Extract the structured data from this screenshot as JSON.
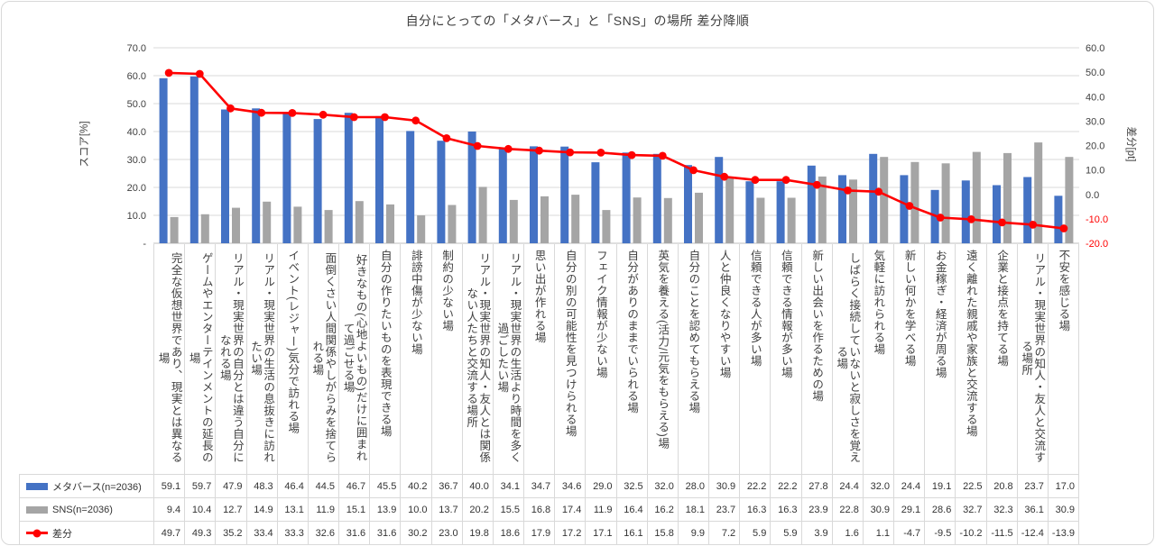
{
  "chart_data": {
    "type": "bar",
    "subtype": "combo-bar-line",
    "title": "自分にとっての「メタバース」と「SNS」の場所 差分降順",
    "grid": "horizontal-only",
    "legend_position": "data-table-left",
    "left_axis": {
      "label": "スコア[%]",
      "min": 0,
      "max": 70,
      "ticks": [
        "70.0",
        "60.0",
        "50.0",
        "40.0",
        "30.0",
        "20.0",
        "10.0",
        "-"
      ]
    },
    "right_axis": {
      "label": "差分[pt]",
      "min": -20,
      "max": 60,
      "ticks": [
        "60.0",
        "50.0",
        "40.0",
        "30.0",
        "20.0",
        "10.0",
        "0.0",
        "-10.0",
        "-20.0"
      ],
      "negative_tick_color": "#ff0000"
    },
    "categories": [
      "完全な仮想世界であり、現実とは異なる場",
      "ゲームやエンターテインメントの延長の場",
      "リアル・現実世界の自分とは違う自分になれる場",
      "リアル・現実世界の生活の息抜きに訪れたい場",
      "イベント(レジャー)気分で訪れる場",
      "面倒くさい人間関係やしがらみを捨てられる場",
      "好きなもの(心地よいもの)だけに囲まれて過ごせる場",
      "自分の作りたいものを表現できる場",
      "誹謗中傷が少ない場",
      "制約の少ない場",
      "リアル・現実世界の知人・友人とは関係ない人たちと交流する場所",
      "リアル・現実世界の生活より時間を多く過ごしたい場",
      "思い出が作れる場",
      "自分の別の可能性を見つけられる場",
      "フェイク情報が少ない場",
      "自分がありのままでいられる場",
      "英気を養える(活力/元気をもらえる)場",
      "自分のことを認めてもらえる場",
      "人と仲良くなりやすい場",
      "信頼できる人が多い場",
      "信頼できる情報が多い場",
      "新しい出会いを作るための場",
      "しばらく接続していないと寂しさを覚える場",
      "気軽に訪れられる場",
      "新しい何かを学べる場",
      "お金稼ぎ・経済が周る場",
      "遠く離れた親戚や家族と交流する場",
      "企業と接点を持てる場",
      "リアル・現実世界の知人・友人と交流する場所",
      "不安を感じる場"
    ],
    "series": [
      {
        "name": "メタバース(n=2036)",
        "type": "bar",
        "color": "#4472C4",
        "axis": "left",
        "values": [
          59.1,
          59.7,
          47.9,
          48.3,
          46.4,
          44.5,
          46.7,
          45.5,
          40.2,
          36.7,
          40.0,
          34.1,
          34.7,
          34.6,
          29.0,
          32.5,
          32.0,
          28.0,
          30.9,
          22.2,
          22.2,
          27.8,
          24.4,
          32.0,
          24.4,
          19.1,
          22.5,
          20.8,
          23.7,
          17.0
        ]
      },
      {
        "name": "SNS(n=2036)",
        "type": "bar",
        "color": "#A5A5A5",
        "axis": "left",
        "values": [
          9.4,
          10.4,
          12.7,
          14.9,
          13.1,
          11.9,
          15.1,
          13.9,
          10.0,
          13.7,
          20.2,
          15.5,
          16.8,
          17.4,
          11.9,
          16.4,
          16.2,
          18.1,
          23.7,
          16.3,
          16.3,
          23.9,
          22.8,
          30.9,
          29.1,
          28.6,
          32.7,
          32.3,
          36.1,
          30.9
        ]
      },
      {
        "name": "差分",
        "type": "line",
        "color": "#FF0000",
        "axis": "right",
        "values": [
          49.7,
          49.3,
          35.2,
          33.4,
          33.3,
          32.6,
          31.6,
          31.6,
          30.2,
          23.0,
          19.8,
          18.6,
          17.9,
          17.2,
          17.1,
          16.1,
          15.8,
          9.9,
          7.2,
          5.9,
          5.9,
          3.9,
          1.6,
          1.1,
          -4.7,
          -9.5,
          -10.2,
          -11.5,
          -12.4,
          -13.9
        ]
      }
    ]
  }
}
